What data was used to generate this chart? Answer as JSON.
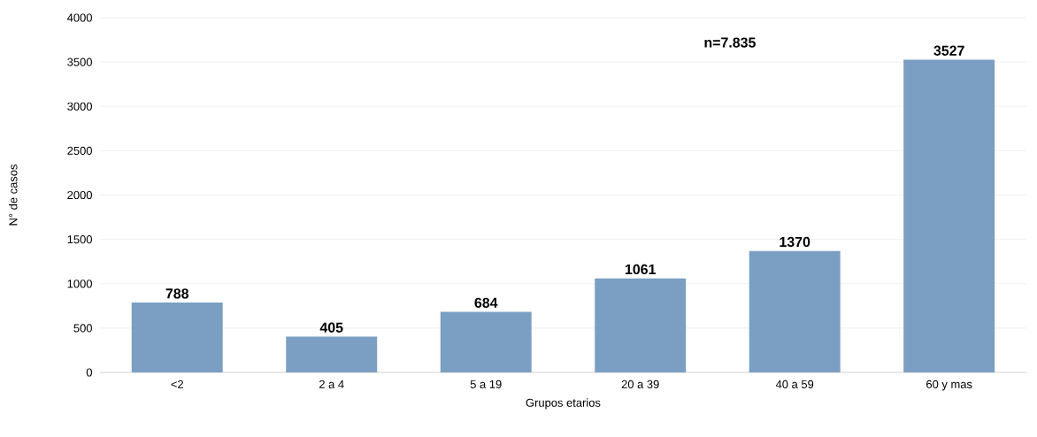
{
  "chart_data": {
    "type": "bar",
    "xlabel": "Grupos etarios",
    "ylabel": "N° de casos",
    "categories": [
      "<2",
      "2 a 4",
      "5 a 19",
      "20 a 39",
      "40 a 59",
      "60 y mas"
    ],
    "values": [
      788,
      405,
      684,
      1061,
      1370,
      3527
    ],
    "color": "#7a9fc3",
    "ylim": [
      0,
      4000
    ],
    "yticks": [
      0,
      500,
      1000,
      1500,
      2000,
      2500,
      3000,
      3500,
      4000
    ],
    "grid": "y",
    "data_labels": true,
    "annotations": [
      "n=7.835"
    ]
  }
}
